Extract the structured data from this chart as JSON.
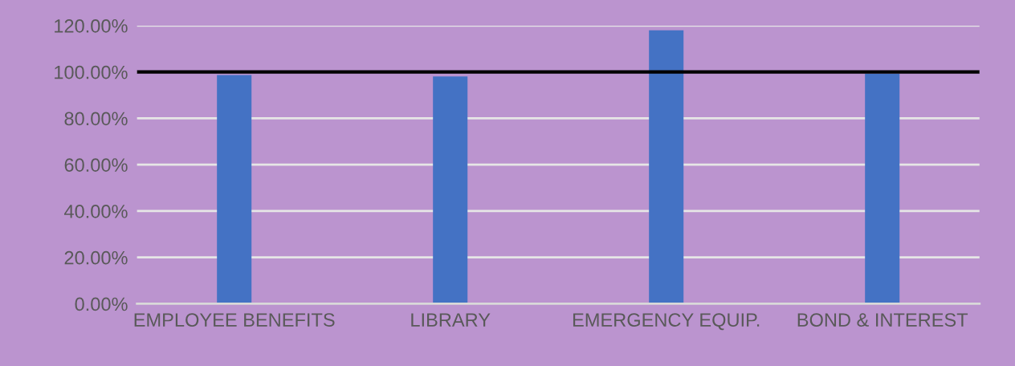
{
  "chart_data": {
    "type": "bar",
    "categories": [
      "EMPLOYEE BENEFITS",
      "LIBRARY",
      "EMERGENCY EQUIP.",
      "BOND & INTEREST"
    ],
    "series": [
      {
        "color": "#4472c4",
        "values": [
          98.7,
          98.1,
          118.0,
          99.3
        ]
      }
    ],
    "ylim": [
      0,
      120
    ],
    "yticks": [
      {
        "value": 0,
        "label": "0.00%"
      },
      {
        "value": 20,
        "label": "20.00%"
      },
      {
        "value": 40,
        "label": "40.00%"
      },
      {
        "value": 60,
        "label": "60.00%"
      },
      {
        "value": 80,
        "label": "80.00%"
      },
      {
        "value": 100,
        "label": "100.00%"
      },
      {
        "value": 120,
        "label": "120.00%"
      }
    ],
    "grid": "y",
    "ref_lines": [
      {
        "axis": "y",
        "value": 100,
        "color": "#000000",
        "line_style": "solid"
      }
    ]
  }
}
